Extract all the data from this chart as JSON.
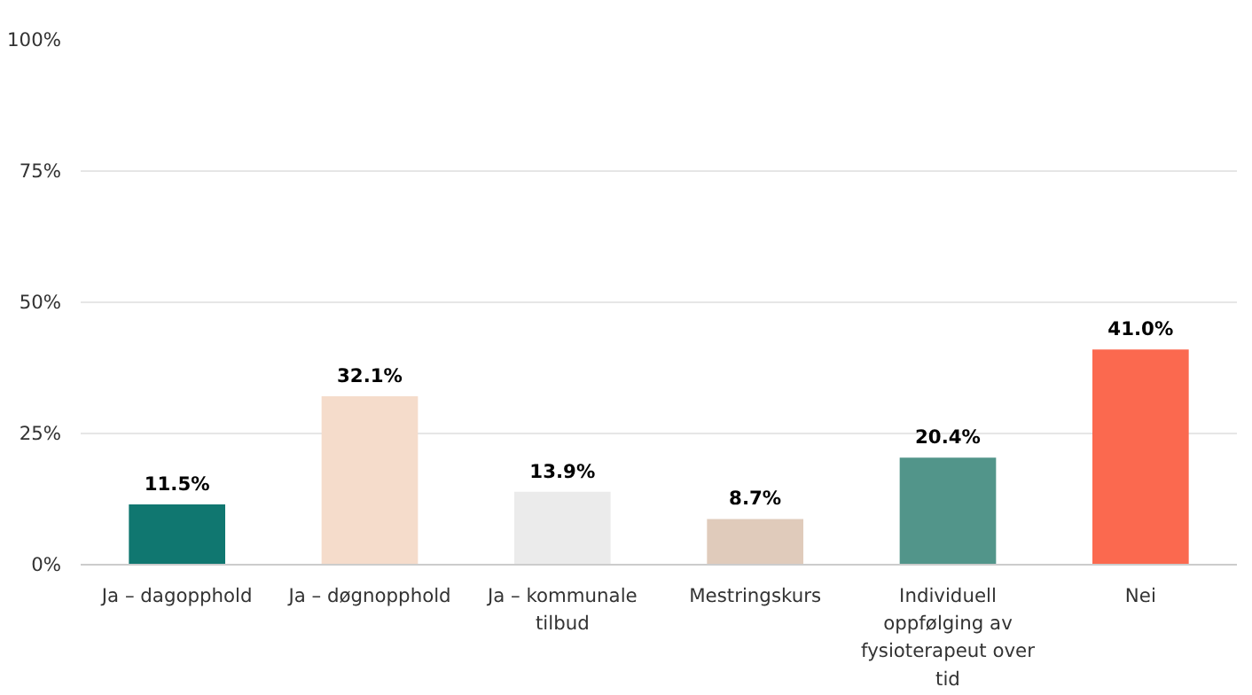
{
  "chart_data": {
    "type": "bar",
    "categories": [
      "Ja – dagopphold",
      "Ja – døgnopphold",
      "Ja – kommunale tilbud",
      "Mestringskurs",
      "Individuell oppfølging av fysioterapeut over tid",
      "Nei"
    ],
    "values": [
      11.5,
      32.1,
      13.9,
      8.7,
      20.4,
      41.0
    ],
    "colors": [
      "#107770",
      "#f5dccb",
      "#ebebeb",
      "#e0cbbb",
      "#52958a",
      "#fb694f"
    ],
    "value_labels": [
      "11.5%",
      "32.1%",
      "13.9%",
      "8.7%",
      "20.4%",
      "41.0%"
    ],
    "ylim": [
      0,
      100
    ],
    "yticks": [
      {
        "value": 0,
        "label": "0%"
      },
      {
        "value": 25,
        "label": "25%"
      },
      {
        "value": 50,
        "label": "50%"
      },
      {
        "value": 75,
        "label": "75%"
      },
      {
        "value": 100,
        "label": "100%"
      }
    ],
    "grid": "y"
  }
}
